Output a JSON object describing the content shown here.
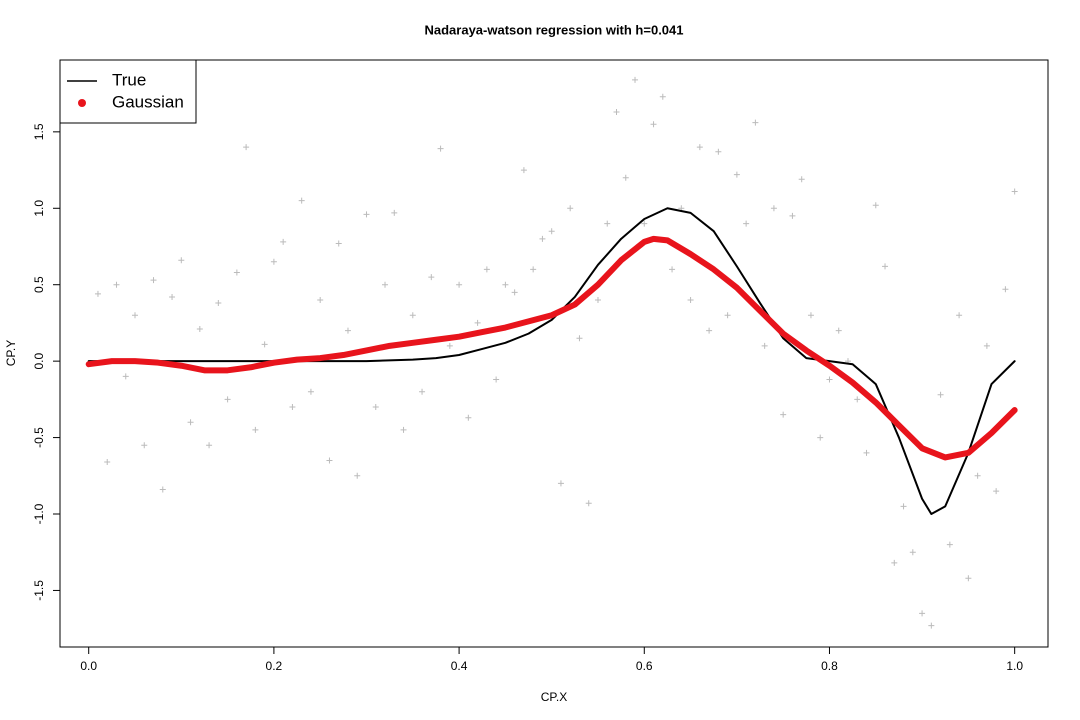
{
  "chart_data": {
    "type": "line",
    "title": "Nadaraya-watson regression with h=0.041",
    "x_label": "CP.X",
    "y_label": "CP.Y",
    "xlim": [
      -0.031,
      1.036
    ],
    "ylim": [
      -1.87,
      1.97
    ],
    "xticks": [
      {
        "value": 0,
        "label": "0.0"
      },
      0.2,
      0.4,
      0.6,
      0.8,
      {
        "value": 1,
        "label": "1.0"
      }
    ],
    "yticks": [
      -1.5,
      {
        "value": -1,
        "label": "-1.0"
      },
      -0.5,
      {
        "value": 0,
        "label": "0.0"
      },
      0.5,
      {
        "value": 1,
        "label": "1.0"
      },
      1.5
    ],
    "legend": "top-left",
    "points": {
      "color": "#bbbbbb",
      "x": [
        0.01,
        0.02,
        0.03,
        0.04,
        0.05,
        0.06,
        0.07,
        0.08,
        0.09,
        0.1,
        0.11,
        0.12,
        0.13,
        0.14,
        0.15,
        0.16,
        0.17,
        0.18,
        0.19,
        0.2,
        0.21,
        0.22,
        0.23,
        0.24,
        0.25,
        0.26,
        0.27,
        0.28,
        0.29,
        0.3,
        0.31,
        0.32,
        0.33,
        0.34,
        0.35,
        0.36,
        0.37,
        0.38,
        0.39,
        0.4,
        0.41,
        0.42,
        0.43,
        0.44,
        0.45,
        0.46,
        0.47,
        0.48,
        0.49,
        0.5,
        0.51,
        0.52,
        0.53,
        0.54,
        0.55,
        0.56,
        0.57,
        0.58,
        0.59,
        0.6,
        0.61,
        0.62,
        0.63,
        0.64,
        0.65,
        0.66,
        0.67,
        0.68,
        0.69,
        0.7,
        0.71,
        0.72,
        0.73,
        0.74,
        0.75,
        0.76,
        0.77,
        0.78,
        0.79,
        0.8,
        0.81,
        0.82,
        0.83,
        0.84,
        0.85,
        0.86,
        0.87,
        0.88,
        0.89,
        0.9,
        0.91,
        0.92,
        0.93,
        0.94,
        0.95,
        0.96,
        0.97,
        0.98,
        0.99,
        1.0
      ],
      "y": [
        0.44,
        -0.66,
        0.5,
        -0.1,
        0.3,
        -0.55,
        0.53,
        -0.84,
        0.42,
        0.66,
        -0.4,
        0.21,
        -0.55,
        0.38,
        -0.25,
        0.58,
        1.4,
        -0.45,
        0.11,
        0.65,
        0.78,
        -0.3,
        1.05,
        -0.2,
        0.4,
        -0.65,
        0.77,
        0.2,
        -0.75,
        0.96,
        -0.3,
        0.5,
        0.97,
        -0.45,
        0.3,
        -0.2,
        0.55,
        1.39,
        0.1,
        0.5,
        -0.37,
        0.25,
        0.6,
        -0.12,
        0.5,
        0.45,
        1.25,
        0.6,
        0.8,
        0.85,
        -0.8,
        1.0,
        0.15,
        -0.93,
        0.4,
        0.9,
        1.63,
        1.2,
        1.84,
        0.9,
        1.55,
        1.73,
        0.6,
        1.0,
        0.4,
        1.4,
        0.2,
        1.37,
        0.3,
        1.22,
        0.9,
        1.56,
        0.1,
        1.0,
        -0.35,
        0.95,
        1.19,
        0.3,
        -0.5,
        -0.12,
        0.2,
        0.0,
        -0.25,
        -0.6,
        1.02,
        0.62,
        -1.32,
        -0.95,
        -1.25,
        -1.65,
        -1.73,
        -0.22,
        -1.2,
        0.3,
        -1.42,
        -0.75,
        0.1,
        -0.85,
        0.47,
        1.11
      ]
    },
    "series": [
      {
        "name": "True",
        "color": "#000000",
        "x": [
          0,
          0.05,
          0.1,
          0.15,
          0.2,
          0.25,
          0.3,
          0.35,
          0.375,
          0.4,
          0.425,
          0.45,
          0.475,
          0.5,
          0.525,
          0.55,
          0.575,
          0.6,
          0.625,
          0.65,
          0.675,
          0.7,
          0.725,
          0.75,
          0.775,
          0.8,
          0.825,
          0.85,
          0.875,
          0.9,
          0.91,
          0.925,
          0.95,
          0.975,
          1.0
        ],
        "values": [
          0,
          0,
          0,
          0,
          0,
          0,
          0,
          0.01,
          0.02,
          0.04,
          0.08,
          0.12,
          0.18,
          0.27,
          0.42,
          0.63,
          0.8,
          0.93,
          1.0,
          0.97,
          0.85,
          0.62,
          0.38,
          0.15,
          0.02,
          0,
          -0.02,
          -0.15,
          -0.5,
          -0.9,
          -1.0,
          -0.95,
          -0.6,
          -0.15,
          0
        ]
      },
      {
        "name": "Gaussian",
        "color": "#e8141c",
        "x": [
          0,
          0.025,
          0.05,
          0.075,
          0.1,
          0.125,
          0.15,
          0.175,
          0.2,
          0.225,
          0.25,
          0.275,
          0.3,
          0.325,
          0.35,
          0.375,
          0.4,
          0.425,
          0.45,
          0.475,
          0.5,
          0.525,
          0.55,
          0.575,
          0.6,
          0.61,
          0.625,
          0.65,
          0.675,
          0.7,
          0.725,
          0.75,
          0.775,
          0.8,
          0.825,
          0.85,
          0.875,
          0.9,
          0.925,
          0.95,
          0.975,
          1.0
        ],
        "values": [
          -0.02,
          0,
          0,
          -0.01,
          -0.03,
          -0.06,
          -0.06,
          -0.04,
          -0.01,
          0.01,
          0.02,
          0.04,
          0.07,
          0.1,
          0.12,
          0.14,
          0.16,
          0.19,
          0.22,
          0.26,
          0.3,
          0.37,
          0.5,
          0.66,
          0.78,
          0.8,
          0.79,
          0.7,
          0.6,
          0.48,
          0.33,
          0.18,
          0.07,
          -0.03,
          -0.14,
          -0.27,
          -0.42,
          -0.57,
          -0.63,
          -0.6,
          -0.47,
          -0.32
        ]
      }
    ]
  }
}
